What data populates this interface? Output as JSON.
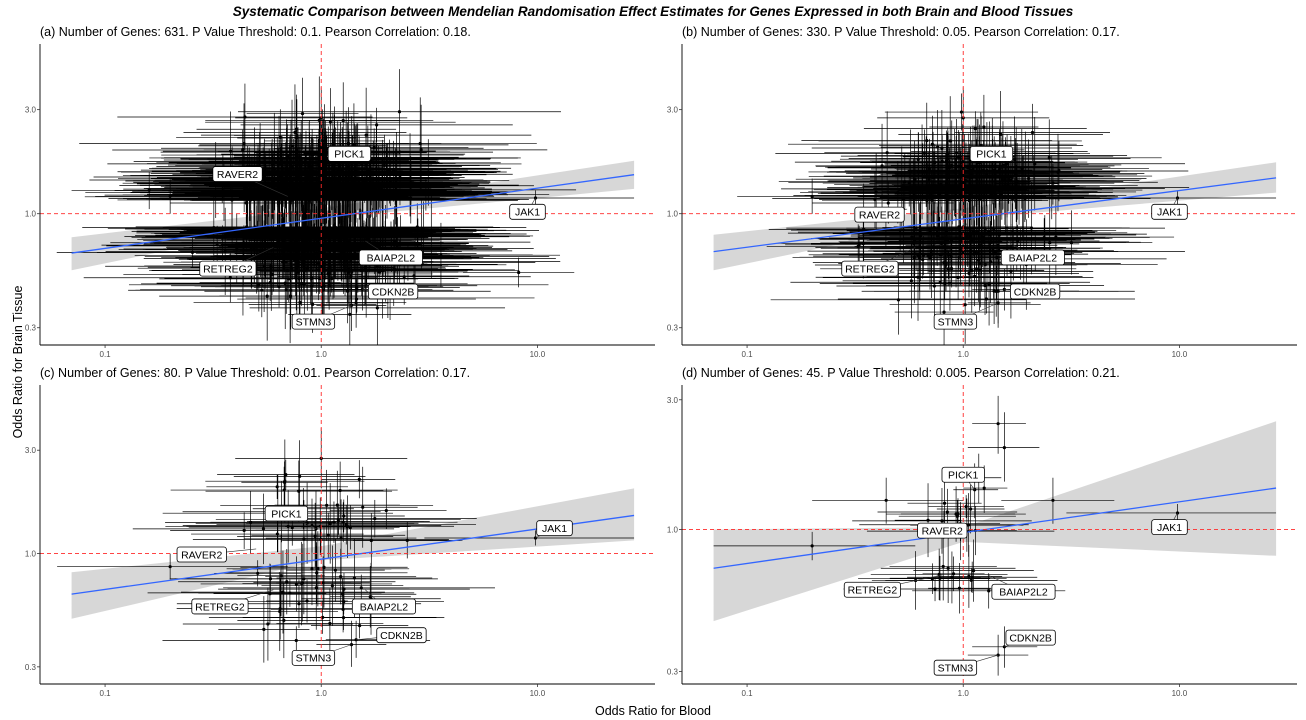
{
  "figure": {
    "title": "Systematic Comparison between Mendelian Randomisation Effect Estimates for Genes Expressed in both Brain and Blood Tissues",
    "xlabel": "Odds Ratio for Blood",
    "ylabel": "Odds Ratio for Brain Tissue"
  },
  "colors": {
    "fit_line": "#3366ff",
    "confidence_band": "#d3d3d3",
    "reference_line": "#ff2a2a",
    "points": "#000000"
  },
  "chart_data": [
    {
      "type": "scatter",
      "title": "(a) Number of Genes: 631. P Value Threshold: 0.1. Pearson Correlation: 0.18.",
      "x_scale": "log",
      "y_scale": "log",
      "xlim": [
        0.05,
        35
      ],
      "ylim": [
        0.25,
        6
      ],
      "x_ticks": [
        {
          "value": 0.1,
          "label": "0.1"
        },
        {
          "value": 1,
          "label": "1.0"
        },
        {
          "value": 10,
          "label": "10.0"
        }
      ],
      "y_ticks": [
        {
          "value": 0.3,
          "label": "0.3"
        },
        {
          "value": 1,
          "label": "1.0"
        },
        {
          "value": 3,
          "label": "3.0"
        }
      ],
      "reference_lines": {
        "x": 1.0,
        "y": 1.0
      },
      "grid": false,
      "fit": {
        "x": [
          0.07,
          28
        ],
        "y": [
          0.66,
          1.51
        ]
      },
      "band": {
        "x": [
          0.07,
          1.0,
          28
        ],
        "lower": [
          0.55,
          0.95,
          1.3
        ],
        "upper": [
          0.78,
          1.06,
          1.75
        ]
      },
      "cloud": {
        "count": 631,
        "seed": 11,
        "cx": 1.0,
        "cy": 1.0,
        "sx": 0.36,
        "sy": 0.24,
        "ex": 0.55,
        "ey": 0.16
      },
      "points": [
        {
          "x": 1.0,
          "y": 2.75,
          "xlo": 0.4,
          "xhi": 2.5,
          "ylo": 2.0,
          "yhi": 3.8
        },
        {
          "x": 0.85,
          "y": 1.88,
          "xlo": 0.55,
          "xhi": 1.3,
          "ylo": 1.5,
          "yhi": 2.4
        },
        {
          "x": 1.25,
          "y": 1.92,
          "xlo": 0.85,
          "xhi": 1.75,
          "ylo": 1.55,
          "yhi": 2.5
        },
        {
          "x": 0.55,
          "y": 1.55,
          "xlo": 0.3,
          "xhi": 1.0,
          "ylo": 1.25,
          "yhi": 1.9
        },
        {
          "x": 0.45,
          "y": 1.12,
          "xlo": 0.2,
          "xhi": 0.9,
          "ylo": 0.9,
          "yhi": 1.4
        },
        {
          "x": 0.2,
          "y": 1.2,
          "xlo": 0.09,
          "xhi": 0.45,
          "ylo": 1.0,
          "yhi": 1.45
        },
        {
          "x": 0.16,
          "y": 1.28,
          "xlo": 0.07,
          "xhi": 0.35,
          "ylo": 1.05,
          "yhi": 1.55
        },
        {
          "x": 2.6,
          "y": 1.38,
          "xlo": 1.4,
          "xhi": 5.0,
          "ylo": 1.1,
          "yhi": 1.7
        },
        {
          "x": 2.0,
          "y": 1.6,
          "xlo": 1.1,
          "xhi": 3.8,
          "ylo": 1.3,
          "yhi": 2.0
        },
        {
          "x": 9.8,
          "y": 1.18,
          "xlo": 3.0,
          "xhi": 28,
          "ylo": 1.09,
          "yhi": 1.28
        },
        {
          "x": 2.8,
          "y": 0.8,
          "xlo": 1.5,
          "xhi": 5.5,
          "ylo": 0.65,
          "yhi": 0.95
        },
        {
          "x": 0.33,
          "y": 0.72,
          "xlo": 0.15,
          "xhi": 0.75,
          "ylo": 0.6,
          "yhi": 0.88
        },
        {
          "x": 1.55,
          "y": 0.45,
          "xlo": 1.1,
          "xhi": 2.2,
          "ylo": 0.36,
          "yhi": 0.56
        },
        {
          "x": 1.45,
          "y": 0.39,
          "xlo": 1.05,
          "xhi": 2.05,
          "ylo": 0.3,
          "yhi": 0.5
        },
        {
          "x": 1.38,
          "y": 0.38,
          "xlo": 0.95,
          "xhi": 2.0,
          "ylo": 0.29,
          "yhi": 0.49
        }
      ],
      "labels": [
        {
          "text": "PICK1",
          "x": 1.35,
          "y": 1.88,
          "px": 1.25,
          "py": 1.88
        },
        {
          "text": "RAVER2",
          "x": 0.41,
          "y": 1.52,
          "px": 0.7,
          "py": 1.2
        },
        {
          "text": "JAK1",
          "x": 9.0,
          "y": 1.02,
          "px": 9.8,
          "py": 1.18
        },
        {
          "text": "RETREG2",
          "x": 0.37,
          "y": 0.56,
          "px": 0.6,
          "py": 0.7
        },
        {
          "text": "BAIAP2L2",
          "x": 2.1,
          "y": 0.63,
          "px": 1.6,
          "py": 0.75
        },
        {
          "text": "CDKN2B",
          "x": 2.15,
          "y": 0.44,
          "px": 1.55,
          "py": 0.45
        },
        {
          "text": "STMN3",
          "x": 0.92,
          "y": 0.32,
          "px": 1.38,
          "py": 0.38
        }
      ]
    },
    {
      "type": "scatter",
      "title": "(b) Number of Genes: 330. P Value Threshold: 0.05. Pearson Correlation: 0.17.",
      "x_scale": "log",
      "y_scale": "log",
      "xlim": [
        0.05,
        35
      ],
      "ylim": [
        0.25,
        6
      ],
      "x_ticks": [
        {
          "value": 0.1,
          "label": "0.1"
        },
        {
          "value": 1,
          "label": "1.0"
        },
        {
          "value": 10,
          "label": "10.0"
        }
      ],
      "y_ticks": [
        {
          "value": 0.3,
          "label": "0.3"
        },
        {
          "value": 1,
          "label": "1.0"
        },
        {
          "value": 3,
          "label": "3.0"
        }
      ],
      "reference_lines": {
        "x": 1.0,
        "y": 1.0
      },
      "grid": false,
      "fit": {
        "x": [
          0.07,
          28
        ],
        "y": [
          0.67,
          1.46
        ]
      },
      "band": {
        "x": [
          0.07,
          1.0,
          28
        ],
        "lower": [
          0.55,
          0.95,
          1.25
        ],
        "upper": [
          0.8,
          1.06,
          1.72
        ]
      },
      "cloud": {
        "count": 330,
        "seed": 23,
        "cx": 1.0,
        "cy": 1.0,
        "sx": 0.33,
        "sy": 0.24,
        "ex": 0.5,
        "ey": 0.16
      },
      "points": [
        {
          "x": 1.0,
          "y": 2.75,
          "xlo": 0.4,
          "xhi": 2.5,
          "ylo": 2.0,
          "yhi": 3.8
        },
        {
          "x": 0.85,
          "y": 1.88,
          "xlo": 0.55,
          "xhi": 1.3,
          "ylo": 1.5,
          "yhi": 2.4
        },
        {
          "x": 1.25,
          "y": 1.92,
          "xlo": 0.85,
          "xhi": 1.75,
          "ylo": 1.55,
          "yhi": 2.5
        },
        {
          "x": 0.45,
          "y": 1.12,
          "xlo": 0.2,
          "xhi": 0.9,
          "ylo": 0.9,
          "yhi": 1.4
        },
        {
          "x": 0.2,
          "y": 1.2,
          "xlo": 0.09,
          "xhi": 0.45,
          "ylo": 1.0,
          "yhi": 1.45
        },
        {
          "x": 2.6,
          "y": 1.38,
          "xlo": 1.4,
          "xhi": 5.0,
          "ylo": 1.1,
          "yhi": 1.7
        },
        {
          "x": 9.8,
          "y": 1.18,
          "xlo": 3.0,
          "xhi": 28,
          "ylo": 1.09,
          "yhi": 1.28
        },
        {
          "x": 0.33,
          "y": 0.72,
          "xlo": 0.15,
          "xhi": 0.75,
          "ylo": 0.6,
          "yhi": 0.88
        },
        {
          "x": 1.55,
          "y": 0.45,
          "xlo": 1.1,
          "xhi": 2.2,
          "ylo": 0.36,
          "yhi": 0.56
        },
        {
          "x": 1.45,
          "y": 0.39,
          "xlo": 1.05,
          "xhi": 2.05,
          "ylo": 0.3,
          "yhi": 0.5
        }
      ],
      "labels": [
        {
          "text": "PICK1",
          "x": 1.35,
          "y": 1.88,
          "px": 1.25,
          "py": 1.88
        },
        {
          "text": "RAVER2",
          "x": 0.41,
          "y": 0.99,
          "px": 0.55,
          "py": 1.05
        },
        {
          "text": "JAK1",
          "x": 9.0,
          "y": 1.02,
          "px": 9.8,
          "py": 1.18
        },
        {
          "text": "RETREG2",
          "x": 0.37,
          "y": 0.56,
          "px": 0.6,
          "py": 0.7
        },
        {
          "text": "BAIAP2L2",
          "x": 2.1,
          "y": 0.63,
          "px": 1.6,
          "py": 0.75
        },
        {
          "text": "CDKN2B",
          "x": 2.15,
          "y": 0.44,
          "px": 1.55,
          "py": 0.45
        },
        {
          "text": "STMN3",
          "x": 0.92,
          "y": 0.32,
          "px": 1.45,
          "py": 0.39
        }
      ]
    },
    {
      "type": "scatter",
      "title": "(c) Number of Genes: 80. P Value Threshold: 0.01. Pearson Correlation: 0.17.",
      "x_scale": "log",
      "y_scale": "log",
      "xlim": [
        0.05,
        35
      ],
      "ylim": [
        0.25,
        6
      ],
      "x_ticks": [
        {
          "value": 0.1,
          "label": "0.1"
        },
        {
          "value": 1,
          "label": "1.0"
        },
        {
          "value": 10,
          "label": "10.0"
        }
      ],
      "y_ticks": [
        {
          "value": 0.3,
          "label": "0.3"
        },
        {
          "value": 1,
          "label": "1.0"
        },
        {
          "value": 3,
          "label": "3.0"
        }
      ],
      "reference_lines": {
        "x": 1.0,
        "y": 1.0
      },
      "grid": false,
      "fit": {
        "x": [
          0.07,
          28
        ],
        "y": [
          0.65,
          1.5
        ]
      },
      "band": {
        "x": [
          0.07,
          1.0,
          28
        ],
        "lower": [
          0.5,
          0.93,
          1.15
        ],
        "upper": [
          0.82,
          1.08,
          2.0
        ]
      },
      "cloud": {
        "count": 80,
        "seed": 37,
        "cx": 1.0,
        "cy": 1.0,
        "sx": 0.28,
        "sy": 0.26,
        "ex": 0.45,
        "ey": 0.14
      },
      "points": [
        {
          "x": 1.0,
          "y": 2.75,
          "xlo": 0.4,
          "xhi": 2.5,
          "ylo": 2.0,
          "yhi": 3.8
        },
        {
          "x": 1.5,
          "y": 2.2,
          "xlo": 1.0,
          "xhi": 2.2,
          "ylo": 1.8,
          "yhi": 2.7
        },
        {
          "x": 2.0,
          "y": 1.58,
          "xlo": 1.1,
          "xhi": 3.8,
          "ylo": 1.3,
          "yhi": 2.0
        },
        {
          "x": 0.44,
          "y": 1.28,
          "xlo": 0.2,
          "xhi": 0.95,
          "ylo": 1.05,
          "yhi": 1.55
        },
        {
          "x": 2.5,
          "y": 1.15,
          "xlo": 1.4,
          "xhi": 4.5,
          "ylo": 0.95,
          "yhi": 1.4
        },
        {
          "x": 9.8,
          "y": 1.18,
          "xlo": 3.0,
          "xhi": 28,
          "ylo": 1.09,
          "yhi": 1.28
        },
        {
          "x": 0.2,
          "y": 0.87,
          "xlo": 0.06,
          "xhi": 0.7,
          "ylo": 0.76,
          "yhi": 1.0
        },
        {
          "x": 1.45,
          "y": 0.4,
          "xlo": 1.05,
          "xhi": 2.0,
          "ylo": 0.33,
          "yhi": 0.49
        },
        {
          "x": 1.38,
          "y": 0.38,
          "xlo": 0.95,
          "xhi": 2.0,
          "ylo": 0.3,
          "yhi": 0.49
        }
      ],
      "labels": [
        {
          "text": "PICK1",
          "x": 0.69,
          "y": 1.53,
          "px": 0.95,
          "py": 1.3
        },
        {
          "text": "RAVER2",
          "x": 0.28,
          "y": 0.99,
          "px": 0.5,
          "py": 1.05
        },
        {
          "text": "JAK1",
          "x": 12.0,
          "y": 1.31,
          "px": 9.8,
          "py": 1.18
        },
        {
          "text": "RETREG2",
          "x": 0.34,
          "y": 0.57,
          "px": 0.6,
          "py": 0.68
        },
        {
          "text": "BAIAP2L2",
          "x": 1.95,
          "y": 0.57,
          "px": 1.6,
          "py": 0.68
        },
        {
          "text": "CDKN2B",
          "x": 2.35,
          "y": 0.42,
          "px": 1.45,
          "py": 0.4
        },
        {
          "text": "STMN3",
          "x": 0.92,
          "y": 0.33,
          "px": 1.38,
          "py": 0.38
        }
      ]
    },
    {
      "type": "scatter",
      "title": "(d) Number of Genes: 45. P Value Threshold: 0.005. Pearson Correlation: 0.21.",
      "x_scale": "log",
      "y_scale": "log",
      "xlim": [
        0.05,
        35
      ],
      "ylim": [
        0.27,
        3.4
      ],
      "x_ticks": [
        {
          "value": 0.1,
          "label": "0.1"
        },
        {
          "value": 1,
          "label": "1.0"
        },
        {
          "value": 10,
          "label": "10.0"
        }
      ],
      "y_ticks": [
        {
          "value": 0.3,
          "label": "0.3"
        },
        {
          "value": 1,
          "label": "1.0"
        },
        {
          "value": 3,
          "label": "3.0"
        }
      ],
      "reference_lines": {
        "x": 1.0,
        "y": 1.0
      },
      "grid": false,
      "fit": {
        "x": [
          0.07,
          28
        ],
        "y": [
          0.72,
          1.42
        ]
      },
      "band": {
        "x": [
          0.07,
          1.0,
          28
        ],
        "lower": [
          0.46,
          0.9,
          0.8
        ],
        "upper": [
          1.0,
          1.02,
          2.5
        ]
      },
      "cloud": {
        "count": 30,
        "seed": 53,
        "cx": 0.95,
        "cy": 0.85,
        "sx": 0.18,
        "sy": 0.12,
        "ex": 0.32,
        "ey": 0.1
      },
      "points": [
        {
          "x": 1.55,
          "y": 2.0,
          "xlo": 1.05,
          "xhi": 2.25,
          "ylo": 1.5,
          "yhi": 2.7
        },
        {
          "x": 1.45,
          "y": 2.45,
          "xlo": 1.1,
          "xhi": 1.95,
          "ylo": 1.9,
          "yhi": 3.1
        },
        {
          "x": 1.13,
          "y": 1.4,
          "xlo": 0.9,
          "xhi": 1.45,
          "ylo": 1.1,
          "yhi": 1.75
        },
        {
          "x": 1.25,
          "y": 1.42,
          "xlo": 1.0,
          "xhi": 1.6,
          "ylo": 1.15,
          "yhi": 1.72
        },
        {
          "x": 1.18,
          "y": 1.55,
          "xlo": 0.95,
          "xhi": 1.5,
          "ylo": 1.25,
          "yhi": 1.9
        },
        {
          "x": 0.44,
          "y": 1.28,
          "xlo": 0.2,
          "xhi": 1.0,
          "ylo": 1.05,
          "yhi": 1.55
        },
        {
          "x": 2.6,
          "y": 1.28,
          "xlo": 1.5,
          "xhi": 5.0,
          "ylo": 1.05,
          "yhi": 1.55
        },
        {
          "x": 9.8,
          "y": 1.15,
          "xlo": 3.0,
          "xhi": 28,
          "ylo": 1.07,
          "yhi": 1.24
        },
        {
          "x": 0.2,
          "y": 0.87,
          "xlo": 0.07,
          "xhi": 0.6,
          "ylo": 0.77,
          "yhi": 0.98
        },
        {
          "x": 1.55,
          "y": 0.37,
          "xlo": 1.1,
          "xhi": 2.2,
          "ylo": 0.31,
          "yhi": 0.44
        },
        {
          "x": 1.45,
          "y": 0.345,
          "xlo": 1.05,
          "xhi": 2.0,
          "ylo": 0.29,
          "yhi": 0.41
        }
      ],
      "labels": [
        {
          "text": "PICK1",
          "x": 1.0,
          "y": 1.59,
          "px": 1.13,
          "py": 1.4
        },
        {
          "text": "RAVER2",
          "x": 0.8,
          "y": 0.99,
          "px": 0.9,
          "py": 0.96
        },
        {
          "text": "JAK1",
          "x": 9.0,
          "y": 1.02,
          "px": 9.8,
          "py": 1.15
        },
        {
          "text": "RETREG2",
          "x": 0.38,
          "y": 0.6,
          "px": 0.8,
          "py": 0.68
        },
        {
          "text": "BAIAP2L2",
          "x": 1.9,
          "y": 0.59,
          "px": 1.3,
          "py": 0.68
        },
        {
          "text": "CDKN2B",
          "x": 2.05,
          "y": 0.4,
          "px": 1.55,
          "py": 0.37
        },
        {
          "text": "STMN3",
          "x": 0.92,
          "y": 0.31,
          "px": 1.45,
          "py": 0.345
        }
      ]
    }
  ]
}
